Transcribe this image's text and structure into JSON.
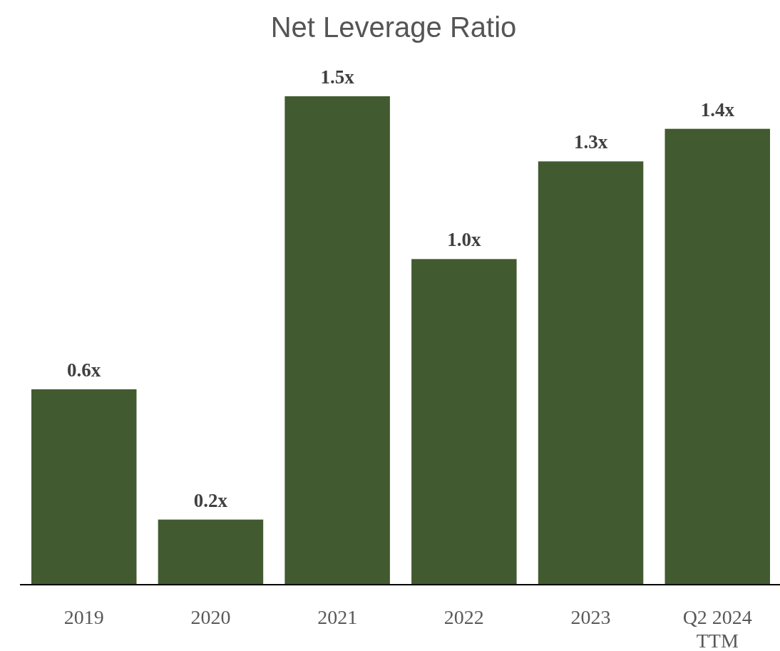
{
  "chart_data": {
    "type": "bar",
    "title": "Net Leverage Ratio",
    "categories": [
      "2019",
      "2020",
      "2021",
      "2022",
      "2023",
      "Q2 2024 TTM"
    ],
    "values": [
      0.6,
      0.2,
      1.5,
      1.0,
      1.3,
      1.4
    ],
    "value_labels": [
      "0.6x",
      "0.2x",
      "1.5x",
      "1.0x",
      "1.3x",
      "1.4x"
    ],
    "color": "#425a2f"
  }
}
